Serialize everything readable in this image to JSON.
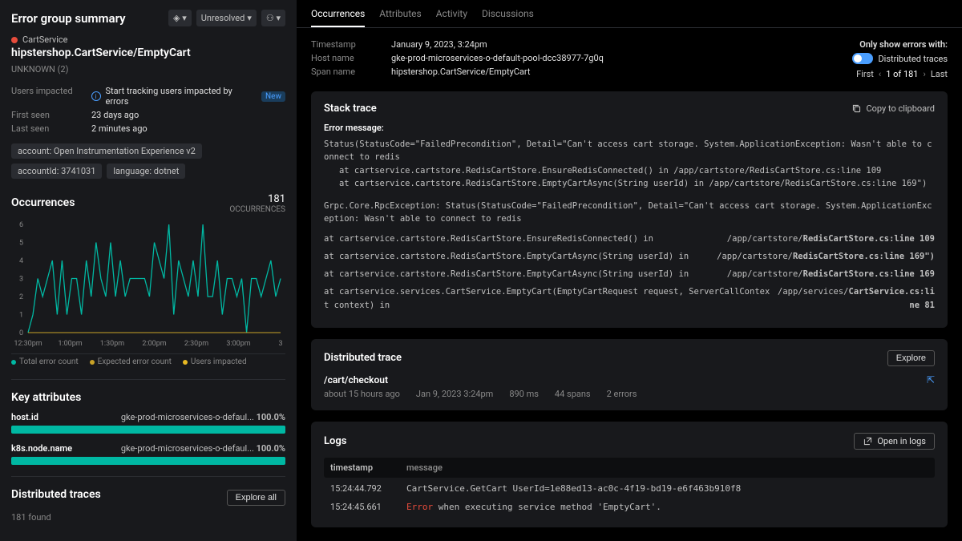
{
  "sidebar": {
    "title": "Error group summary",
    "status_dropdown": "Unresolved",
    "service": "CartService",
    "error_name": "hipstershop.CartService/EmptyCart",
    "unknown": "UNKNOWN (2)",
    "users_impacted_label": "Users impacted",
    "users_impacted_hint": "Start tracking users impacted by errors",
    "new_badge": "New",
    "first_seen_label": "First seen",
    "first_seen_val": "23 days ago",
    "last_seen_label": "Last seen",
    "last_seen_val": "2 minutes ago",
    "tags": [
      "account: Open Instrumentation Experience v2",
      "accountId: 3741031",
      "language: dotnet"
    ],
    "occurrences_title": "Occurrences",
    "occurrences_count": "181",
    "occurrences_unit": "OCCURRENCES",
    "chart": {
      "y_ticks": [
        0,
        1,
        2,
        3,
        4,
        5,
        6
      ],
      "x_ticks": [
        "12:30pm",
        "1:00pm",
        "1:30pm",
        "2:00pm",
        "2:30pm",
        "3:00pm",
        "3"
      ],
      "line_color": "#00b8a3",
      "expected_color": "#c9a227",
      "users_color": "#e8b923",
      "values": [
        0,
        1,
        3,
        2,
        3,
        4,
        1,
        4,
        1,
        3,
        3,
        1,
        4,
        2,
        5,
        3,
        2,
        5,
        2,
        4,
        2,
        3,
        3,
        3,
        3,
        2,
        5,
        4,
        3,
        6,
        1,
        4,
        3,
        2,
        4,
        2,
        6,
        2,
        2,
        4,
        1,
        3,
        3,
        2,
        3,
        0,
        3,
        3,
        2,
        3,
        4,
        2,
        3
      ]
    },
    "legend": {
      "total": "Total error count",
      "expected": "Expected error count",
      "users": "Users impacted"
    },
    "key_attrs_title": "Key attributes",
    "attrs": [
      {
        "key": "host.id",
        "val": "gke-prod-microservices-o-defaul...",
        "pct": "100.0%"
      },
      {
        "key": "k8s.node.name",
        "val": "gke-prod-microservices-o-defaul...",
        "pct": "100.0%"
      }
    ],
    "dist_traces_title": "Distributed traces",
    "explore_all": "Explore all",
    "traces_found": "181 found"
  },
  "tabs": [
    "Occurrences",
    "Attributes",
    "Activity",
    "Discussions"
  ],
  "info": {
    "timestamp_label": "Timestamp",
    "timestamp": "January 9, 2023, 3:24pm",
    "hostname_label": "Host name",
    "hostname": "gke-prod-microservices-o-default-pool-dcc38977-7g0q",
    "spanname_label": "Span name",
    "spanname": "hipstershop.CartService/EmptyCart",
    "only_show": "Only show errors with:",
    "dist_traces": "Distributed traces",
    "pager_first": "First",
    "pager_pos": "1 of 181",
    "pager_last": "Last"
  },
  "stack": {
    "title": "Stack trace",
    "copy": "Copy to clipboard",
    "err_label": "Error message:",
    "msg": "Status(StatusCode=\"FailedPrecondition\", Detail=\"Can't access cart storage. System.ApplicationException: Wasn't able to connect to redis\n   at cartservice.cartstore.RedisCartStore.EnsureRedisConnected() in /app/cartstore/RedisCartStore.cs:line 109\n   at cartservice.cartstore.RedisCartStore.EmptyCartAsync(String userId) in /app/cartstore/RedisCartStore.cs:line 169\")",
    "body": "Grpc.Core.RpcException: Status(StatusCode=\"FailedPrecondition\", Detail=\"Can't access cart storage. System.ApplicationException: Wasn't able to connect to redis",
    "frames": [
      {
        "at": "at cartservice.cartstore.RedisCartStore.EnsureRedisConnected() in",
        "path": "/app/cartstore/",
        "file": "RedisCartStore.cs:",
        "line": "line 109"
      },
      {
        "at": "at cartservice.cartstore.RedisCartStore.EmptyCartAsync(String userId) in",
        "path": "/app/cartstore/",
        "file": "RedisCartStore.cs:",
        "line": "line 169\")"
      },
      {
        "at": "at cartservice.cartstore.RedisCartStore.EmptyCartAsync(String userId) in",
        "path": "/app/cartstore/",
        "file": "RedisCartStore.cs:",
        "line": "line 169"
      },
      {
        "at": "at cartservice.services.CartService.EmptyCart(EmptyCartRequest request, ServerCallContext context) in",
        "path": "/app/services/",
        "file": "CartService.cs:",
        "line": "line 81"
      }
    ]
  },
  "dt": {
    "title": "Distributed trace",
    "explore": "Explore",
    "name": "/cart/checkout",
    "ago": "about 15 hours ago",
    "time": "Jan 9, 2023 3:24pm",
    "dur": "890 ms",
    "spans": "44 spans",
    "errors": "2 errors"
  },
  "logs": {
    "title": "Logs",
    "open": "Open in logs",
    "col_ts": "timestamp",
    "col_msg": "message",
    "rows": [
      {
        "ts": "15:24:44.792",
        "msg": "CartService.GetCart UserId=1e88ed13-ac0c-4f19-bd19-e6f463b910f8",
        "err": false
      },
      {
        "ts": "15:24:45.661",
        "msg": " when executing service method 'EmptyCart'.",
        "err": true,
        "prefix": "Error"
      }
    ]
  }
}
